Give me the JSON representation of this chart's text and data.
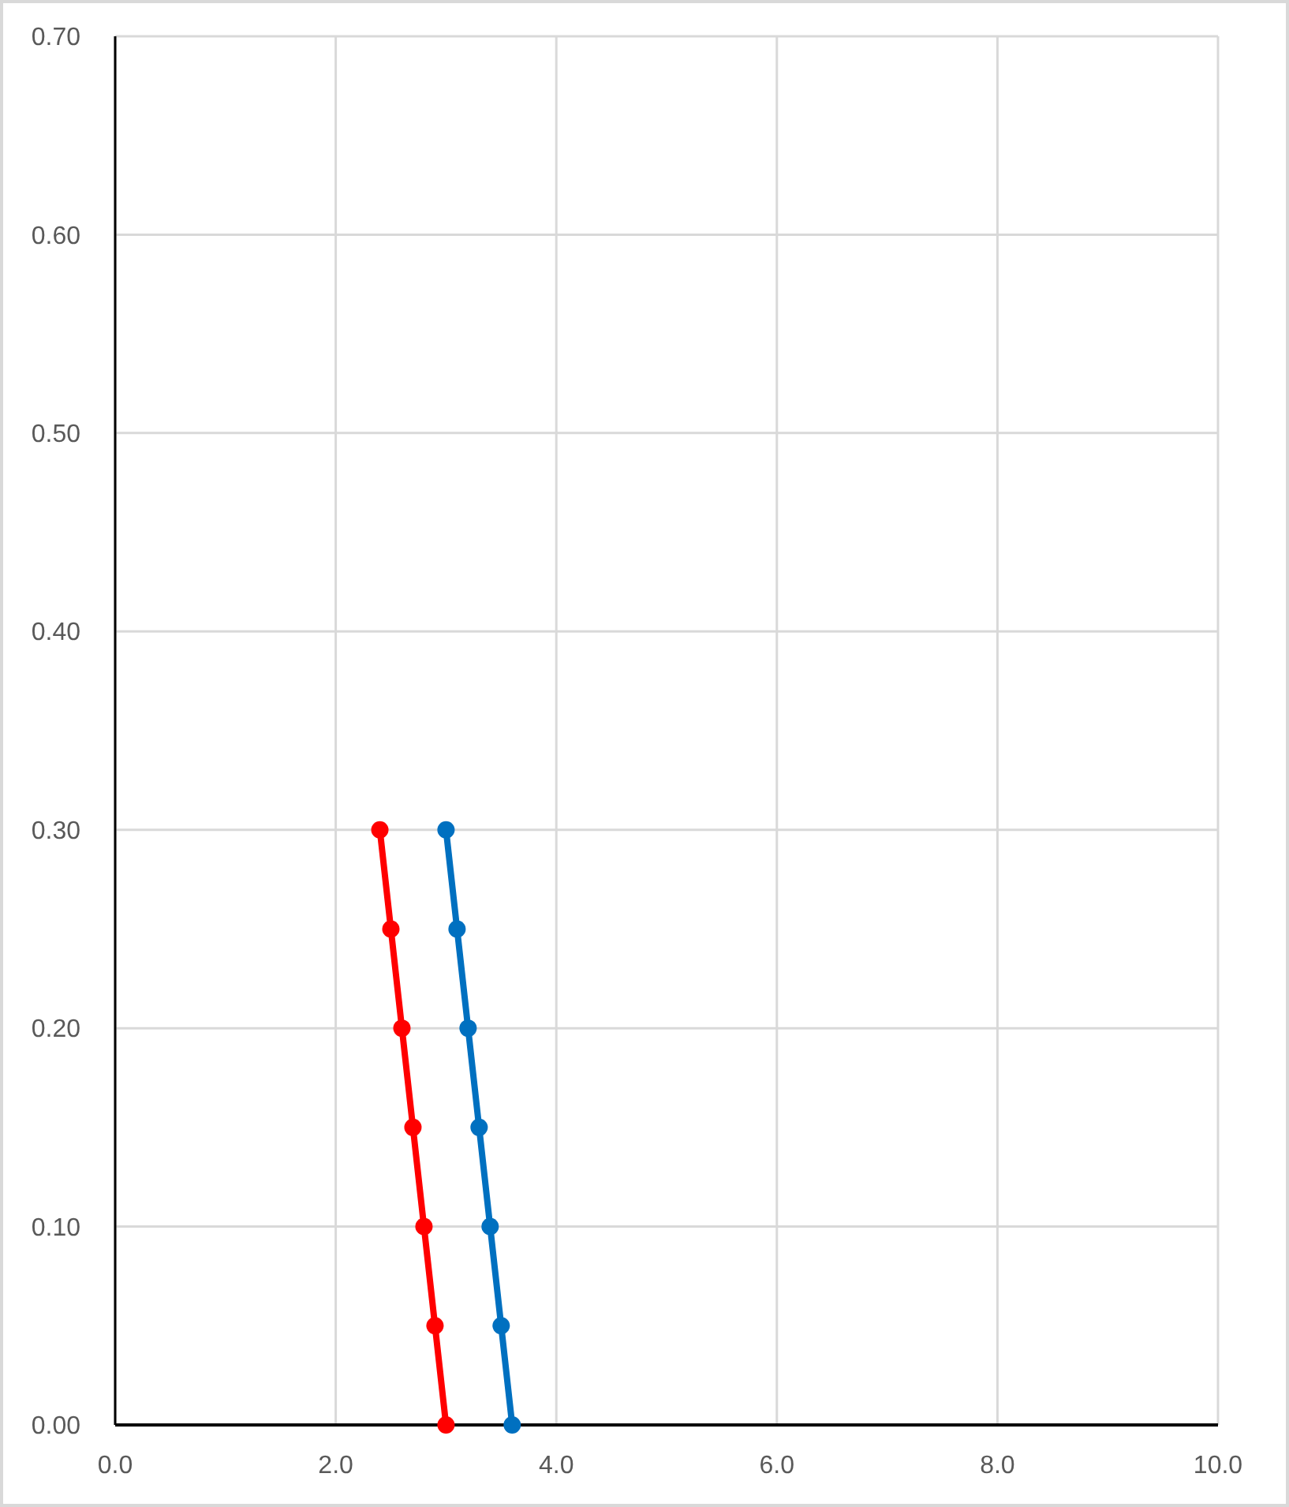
{
  "chart_data": {
    "type": "line",
    "xlim": [
      0,
      10
    ],
    "xticks": [
      {
        "value": 0,
        "label": "0.0"
      },
      {
        "value": 2,
        "label": "2.0"
      },
      {
        "value": 4,
        "label": "4.0"
      },
      {
        "value": 6,
        "label": "6.0"
      },
      {
        "value": 8,
        "label": "8.0"
      },
      {
        "value": 10,
        "label": "10.0"
      }
    ],
    "ylim": [
      0,
      0.7
    ],
    "yticks": [
      {
        "value": 0,
        "label": "0.00"
      },
      {
        "value": 0.1,
        "label": "0.10"
      },
      {
        "value": 0.2,
        "label": "0.20"
      },
      {
        "value": 0.3,
        "label": "0.30"
      },
      {
        "value": 0.4,
        "label": "0.40"
      },
      {
        "value": 0.5,
        "label": "0.50"
      },
      {
        "value": 0.6,
        "label": "0.60"
      },
      {
        "value": 0.7,
        "label": "0.70"
      }
    ],
    "grid": true,
    "marker": "circle",
    "line_style": "solid",
    "series": [
      {
        "color": "#ff0000",
        "x": [
          3.0,
          2.9,
          2.8,
          2.7,
          2.6,
          2.5,
          2.4
        ],
        "values": [
          0,
          0.05,
          0.1,
          0.15,
          0.2,
          0.25,
          0.3
        ]
      },
      {
        "color": "#0070c0",
        "x": [
          3.6,
          3.5,
          3.4,
          3.3,
          3.2,
          3.1,
          3.0
        ],
        "values": [
          0,
          0.05,
          0.1,
          0.15,
          0.2,
          0.25,
          0.3
        ]
      }
    ]
  }
}
